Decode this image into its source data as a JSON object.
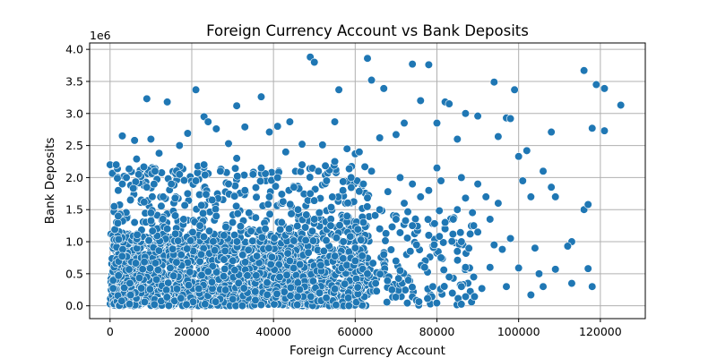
{
  "chart_data": {
    "type": "scatter",
    "title": "Foreign Currency Account vs Bank Deposits",
    "xlabel": "Foreign Currency Account",
    "ylabel": "Bank Deposits",
    "y_scale_label": "1e6",
    "xlim": [
      -5000,
      131000
    ],
    "ylim": [
      -0.2,
      4.1
    ],
    "y_unit_multiplier": 1000000,
    "x_ticks": [
      0,
      20000,
      40000,
      60000,
      80000,
      100000,
      120000
    ],
    "x_tick_labels": [
      "0",
      "20000",
      "40000",
      "60000",
      "80000",
      "100000",
      "120000"
    ],
    "y_ticks": [
      0.0,
      0.5,
      1.0,
      1.5,
      2.0,
      2.5,
      3.0,
      3.5,
      4.0
    ],
    "y_tick_labels": [
      "0.0",
      "0.5",
      "1.0",
      "1.5",
      "2.0",
      "2.5",
      "3.0",
      "3.5",
      "4.0"
    ],
    "grid": true,
    "marker_color": "#1f77b4",
    "marker_edge_color": "#ffffff",
    "points_note_for_render": "dense cluster rendered as explicit points below",
    "points": [
      [
        0,
        2.2
      ],
      [
        1500,
        2.2
      ],
      [
        3000,
        2.65
      ],
      [
        6000,
        2.58
      ],
      [
        9000,
        3.23
      ],
      [
        14000,
        3.18
      ],
      [
        21000,
        3.37
      ],
      [
        23000,
        2.95
      ],
      [
        31000,
        3.12
      ],
      [
        37000,
        3.26
      ],
      [
        49000,
        3.88
      ],
      [
        50000,
        3.8
      ],
      [
        56000,
        3.37
      ],
      [
        63000,
        3.86
      ],
      [
        64000,
        3.52
      ],
      [
        67000,
        3.39
      ],
      [
        74000,
        3.77
      ],
      [
        78000,
        3.76
      ],
      [
        76000,
        3.2
      ],
      [
        82000,
        3.18
      ],
      [
        83000,
        3.15
      ],
      [
        94000,
        3.49
      ],
      [
        99000,
        3.37
      ],
      [
        116000,
        3.67
      ],
      [
        119000,
        3.45
      ],
      [
        121000,
        3.39
      ],
      [
        125000,
        3.13
      ],
      [
        118000,
        2.77
      ],
      [
        121000,
        2.73
      ],
      [
        108000,
        2.71
      ],
      [
        102000,
        2.42
      ],
      [
        100000,
        2.33
      ],
      [
        97000,
        2.93
      ],
      [
        98000,
        2.92
      ],
      [
        95000,
        2.64
      ],
      [
        90000,
        2.96
      ],
      [
        87000,
        3.0
      ],
      [
        85000,
        2.6
      ],
      [
        80000,
        2.85
      ],
      [
        72000,
        2.85
      ],
      [
        70000,
        2.67
      ],
      [
        66000,
        2.62
      ],
      [
        60000,
        2.37
      ],
      [
        58000,
        2.45
      ],
      [
        55000,
        2.87
      ],
      [
        52000,
        2.51
      ],
      [
        47000,
        2.52
      ],
      [
        44000,
        2.87
      ],
      [
        41000,
        2.8
      ],
      [
        39000,
        2.71
      ],
      [
        33000,
        2.79
      ],
      [
        29000,
        2.53
      ],
      [
        26000,
        2.76
      ],
      [
        24000,
        2.87
      ],
      [
        19000,
        2.69
      ],
      [
        17000,
        2.5
      ],
      [
        12000,
        2.38
      ],
      [
        10000,
        2.6
      ],
      [
        6500,
        2.29
      ],
      [
        4000,
        2.0
      ],
      [
        2000,
        1.8
      ],
      [
        116000,
        1.5
      ],
      [
        117000,
        1.58
      ],
      [
        117000,
        0.58
      ],
      [
        113000,
        1.0
      ],
      [
        112000,
        0.93
      ],
      [
        109000,
        1.7
      ],
      [
        108000,
        1.85
      ],
      [
        106000,
        2.1
      ],
      [
        103000,
        1.7
      ],
      [
        101000,
        1.95
      ],
      [
        104000,
        0.9
      ],
      [
        103000,
        0.17
      ],
      [
        100000,
        0.59
      ],
      [
        97000,
        0.3
      ],
      [
        96000,
        0.88
      ],
      [
        93000,
        0.6
      ],
      [
        91000,
        0.27
      ],
      [
        88000,
        0.59
      ],
      [
        86000,
        0.3
      ],
      [
        84000,
        0.43
      ],
      [
        118000,
        0.3
      ],
      [
        113000,
        0.35
      ],
      [
        105000,
        0.5
      ],
      [
        106000,
        0.3
      ],
      [
        109000,
        0.57
      ],
      [
        95000,
        1.6
      ],
      [
        93000,
        1.35
      ],
      [
        92000,
        1.7
      ],
      [
        90000,
        1.9
      ],
      [
        89000,
        1.25
      ],
      [
        87000,
        1.68
      ],
      [
        86000,
        2.0
      ],
      [
        85000,
        1.5
      ],
      [
        84000,
        1.35
      ],
      [
        82000,
        1.2
      ],
      [
        81000,
        1.95
      ],
      [
        80000,
        2.15
      ],
      [
        78000,
        1.8
      ],
      [
        76000,
        1.7
      ],
      [
        74000,
        1.9
      ],
      [
        72000,
        1.6
      ],
      [
        71000,
        2.0
      ],
      [
        70000,
        1.4
      ],
      [
        68000,
        1.78
      ],
      [
        66000,
        1.5
      ],
      [
        64000,
        2.1
      ],
      [
        62000,
        1.9
      ],
      [
        61000,
        2.4
      ],
      [
        59000,
        2.0
      ],
      [
        57000,
        1.8
      ],
      [
        55000,
        2.25
      ],
      [
        53000,
        1.95
      ],
      [
        51000,
        2.1
      ],
      [
        49000,
        1.75
      ],
      [
        47000,
        2.2
      ],
      [
        45000,
        1.85
      ],
      [
        43000,
        2.4
      ],
      [
        41000,
        2.0
      ],
      [
        39000,
        1.7
      ],
      [
        37000,
        2.15
      ],
      [
        35000,
        2.05
      ],
      [
        33000,
        1.8
      ],
      [
        31000,
        2.3
      ],
      [
        29000,
        1.9
      ],
      [
        27000,
        2.1
      ],
      [
        25000,
        1.65
      ],
      [
        23000,
        2.2
      ],
      [
        21000,
        1.95
      ],
      [
        19000,
        1.75
      ],
      [
        17000,
        2.05
      ],
      [
        15000,
        1.9
      ],
      [
        13000,
        1.7
      ],
      [
        11000,
        2.1
      ],
      [
        9000,
        1.85
      ],
      [
        7000,
        2.05
      ],
      [
        5000,
        1.65
      ],
      [
        3000,
        1.9
      ],
      [
        1000,
        1.55
      ],
      [
        2000,
        1.4
      ],
      [
        6000,
        1.3
      ],
      [
        10000,
        1.45
      ],
      [
        14000,
        1.2
      ],
      [
        18000,
        1.35
      ],
      [
        22000,
        1.25
      ],
      [
        26000,
        1.4
      ],
      [
        30000,
        1.3
      ],
      [
        34000,
        1.45
      ],
      [
        38000,
        1.2
      ],
      [
        42000,
        1.3
      ],
      [
        46000,
        1.5
      ],
      [
        50000,
        1.35
      ],
      [
        54000,
        1.25
      ],
      [
        58000,
        1.4
      ],
      [
        62000,
        1.3
      ],
      [
        66000,
        1.2
      ],
      [
        70000,
        1.35
      ],
      [
        74000,
        1.25
      ],
      [
        78000,
        1.1
      ],
      [
        82000,
        1.3
      ],
      [
        86000,
        1.0
      ],
      [
        90000,
        1.15
      ],
      [
        94000,
        0.95
      ],
      [
        98000,
        1.05
      ],
      [
        60000,
        0.7
      ],
      [
        63000,
        0.5
      ],
      [
        65000,
        0.35
      ],
      [
        67000,
        0.8
      ],
      [
        69000,
        0.25
      ],
      [
        71000,
        0.55
      ],
      [
        73000,
        0.4
      ],
      [
        75000,
        0.95
      ],
      [
        77000,
        0.6
      ],
      [
        79000,
        0.3
      ],
      [
        81000,
        0.75
      ],
      [
        83000,
        0.45
      ],
      [
        85000,
        0.85
      ],
      [
        87000,
        0.6
      ],
      [
        89000,
        0.45
      ]
    ]
  }
}
